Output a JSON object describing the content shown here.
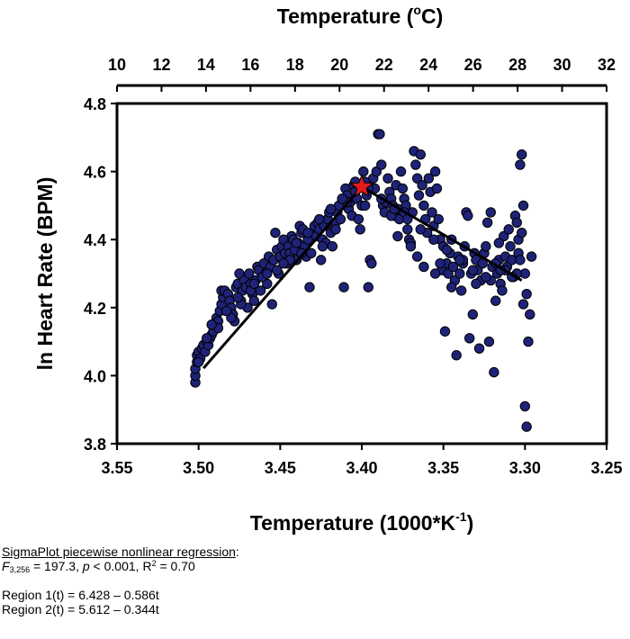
{
  "chart_data": {
    "type": "scatter",
    "title": "",
    "xlabel": "Temperature (1000*K",
    "xlabel_sup": "-1",
    "xlabel_end": ")",
    "ylabel": "ln Heart Rate (BPM)",
    "top_axis_title": "Temperature (",
    "top_axis_title_sup": "o",
    "top_axis_title_end": "C)",
    "xlim": [
      3.55,
      3.25
    ],
    "ylim": [
      3.8,
      4.8
    ],
    "x_ticks": [
      "3.55",
      "3.50",
      "3.45",
      "3.40",
      "3.35",
      "3.30",
      "3.25"
    ],
    "y_ticks": [
      "3.8",
      "4.0",
      "4.2",
      "4.4",
      "4.6",
      "4.8"
    ],
    "top_axis_ticks": [
      "10",
      "12",
      "14",
      "16",
      "18",
      "20",
      "22",
      "24",
      "26",
      "28",
      "30",
      "32"
    ],
    "grid": false,
    "marker_color": "#1f2378",
    "points": [
      [
        3.502,
        3.98
      ],
      [
        3.502,
        4.0
      ],
      [
        3.502,
        4.02
      ],
      [
        3.501,
        4.04
      ],
      [
        3.501,
        4.06
      ],
      [
        3.5,
        4.07
      ],
      [
        3.499,
        4.05
      ],
      [
        3.498,
        4.08
      ],
      [
        3.497,
        4.09
      ],
      [
        3.496,
        4.07
      ],
      [
        3.495,
        4.1
      ],
      [
        3.494,
        4.09
      ],
      [
        3.493,
        4.11
      ],
      [
        3.492,
        4.12
      ],
      [
        3.491,
        4.13
      ],
      [
        3.49,
        4.15
      ],
      [
        3.489,
        4.17
      ],
      [
        3.488,
        4.16
      ],
      [
        3.487,
        4.19
      ],
      [
        3.486,
        4.21
      ],
      [
        3.485,
        4.23
      ],
      [
        3.486,
        4.25
      ],
      [
        3.484,
        4.25
      ],
      [
        3.482,
        4.24
      ],
      [
        3.481,
        4.22
      ],
      [
        3.48,
        4.2
      ],
      [
        3.479,
        4.18
      ],
      [
        3.478,
        4.16
      ],
      [
        3.477,
        4.26
      ],
      [
        3.476,
        4.27
      ],
      [
        3.475,
        4.3
      ],
      [
        3.474,
        4.22
      ],
      [
        3.473,
        4.25
      ],
      [
        3.472,
        4.28
      ],
      [
        3.471,
        4.26
      ],
      [
        3.47,
        4.2
      ],
      [
        3.469,
        4.3
      ],
      [
        3.468,
        4.27
      ],
      [
        3.467,
        4.24
      ],
      [
        3.466,
        4.22
      ],
      [
        3.465,
        4.28
      ],
      [
        3.464,
        4.32
      ],
      [
        3.463,
        4.31
      ],
      [
        3.462,
        4.25
      ],
      [
        3.461,
        4.29
      ],
      [
        3.46,
        4.33
      ],
      [
        3.459,
        4.3
      ],
      [
        3.458,
        4.27
      ],
      [
        3.457,
        4.35
      ],
      [
        3.456,
        4.32
      ],
      [
        3.455,
        4.21
      ],
      [
        3.454,
        4.34
      ],
      [
        3.453,
        4.42
      ],
      [
        3.452,
        4.37
      ],
      [
        3.451,
        4.3
      ],
      [
        3.45,
        4.35
      ],
      [
        3.449,
        4.38
      ],
      [
        3.448,
        4.4
      ],
      [
        3.447,
        4.36
      ],
      [
        3.446,
        4.33
      ],
      [
        3.445,
        4.38
      ],
      [
        3.444,
        4.36
      ],
      [
        3.443,
        4.41
      ],
      [
        3.442,
        4.4
      ],
      [
        3.441,
        4.37
      ],
      [
        3.44,
        4.34
      ],
      [
        3.439,
        4.39
      ],
      [
        3.438,
        4.44
      ],
      [
        3.437,
        4.42
      ],
      [
        3.436,
        4.43
      ],
      [
        3.435,
        4.38
      ],
      [
        3.434,
        4.35
      ],
      [
        3.433,
        4.4
      ],
      [
        3.432,
        4.26
      ],
      [
        3.431,
        4.36
      ],
      [
        3.43,
        4.42
      ],
      [
        3.429,
        4.44
      ],
      [
        3.428,
        4.41
      ],
      [
        3.427,
        4.45
      ],
      [
        3.426,
        4.43
      ],
      [
        3.425,
        4.34
      ],
      [
        3.424,
        4.4
      ],
      [
        3.423,
        4.44
      ],
      [
        3.422,
        4.39
      ],
      [
        3.421,
        4.46
      ],
      [
        3.42,
        4.48
      ],
      [
        3.419,
        4.42
      ],
      [
        3.418,
        4.38
      ],
      [
        3.417,
        4.44
      ],
      [
        3.416,
        4.45
      ],
      [
        3.415,
        4.48
      ],
      [
        3.414,
        4.5
      ],
      [
        3.413,
        4.46
      ],
      [
        3.412,
        4.52
      ],
      [
        3.411,
        4.26
      ],
      [
        3.41,
        4.55
      ],
      [
        3.409,
        4.53
      ],
      [
        3.408,
        4.49
      ],
      [
        3.407,
        4.51
      ],
      [
        3.406,
        4.47
      ],
      [
        3.405,
        4.56
      ],
      [
        3.404,
        4.54
      ],
      [
        3.403,
        4.52
      ],
      [
        3.402,
        4.46
      ],
      [
        3.401,
        4.43
      ],
      [
        3.4,
        4.5
      ],
      [
        3.399,
        4.6
      ],
      [
        3.398,
        4.57
      ],
      [
        3.397,
        4.53
      ],
      [
        3.396,
        4.26
      ],
      [
        3.395,
        4.34
      ],
      [
        3.394,
        4.33
      ],
      [
        3.393,
        4.58
      ],
      [
        3.392,
        4.55
      ],
      [
        3.391,
        4.6
      ],
      [
        3.39,
        4.71
      ],
      [
        3.389,
        4.71
      ],
      [
        3.388,
        4.62
      ],
      [
        3.387,
        4.5
      ],
      [
        3.386,
        4.48
      ],
      [
        3.385,
        4.51
      ],
      [
        3.384,
        4.58
      ],
      [
        3.383,
        4.54
      ],
      [
        3.382,
        4.52
      ],
      [
        3.381,
        4.5
      ],
      [
        3.38,
        4.47
      ],
      [
        3.379,
        4.56
      ],
      [
        3.378,
        4.49
      ],
      [
        3.377,
        4.46
      ],
      [
        3.376,
        4.6
      ],
      [
        3.375,
        4.55
      ],
      [
        3.374,
        4.52
      ],
      [
        3.373,
        4.5
      ],
      [
        3.372,
        4.43
      ],
      [
        3.371,
        4.4
      ],
      [
        3.37,
        4.39
      ],
      [
        3.369,
        4.48
      ],
      [
        3.368,
        4.66
      ],
      [
        3.367,
        4.62
      ],
      [
        3.366,
        4.58
      ],
      [
        3.365,
        4.53
      ],
      [
        3.364,
        4.65
      ],
      [
        3.363,
        4.56
      ],
      [
        3.362,
        4.5
      ],
      [
        3.361,
        4.46
      ],
      [
        3.36,
        4.42
      ],
      [
        3.359,
        4.58
      ],
      [
        3.358,
        4.54
      ],
      [
        3.357,
        4.48
      ],
      [
        3.356,
        4.44
      ],
      [
        3.355,
        4.6
      ],
      [
        3.354,
        4.55
      ],
      [
        3.353,
        4.46
      ],
      [
        3.352,
        4.4
      ],
      [
        3.351,
        4.31
      ],
      [
        3.35,
        4.38
      ],
      [
        3.349,
        4.13
      ],
      [
        3.348,
        4.33
      ],
      [
        3.347,
        4.3
      ],
      [
        3.346,
        4.36
      ],
      [
        3.345,
        4.4
      ],
      [
        3.344,
        4.32
      ],
      [
        3.343,
        4.28
      ],
      [
        3.342,
        4.06
      ],
      [
        3.341,
        4.35
      ],
      [
        3.34,
        4.3
      ],
      [
        3.339,
        4.25
      ],
      [
        3.338,
        4.33
      ],
      [
        3.337,
        4.38
      ],
      [
        3.336,
        4.48
      ],
      [
        3.335,
        4.47
      ],
      [
        3.334,
        4.11
      ],
      [
        3.333,
        4.3
      ],
      [
        3.332,
        4.18
      ],
      [
        3.331,
        4.36
      ],
      [
        3.33,
        4.34
      ],
      [
        3.329,
        4.31
      ],
      [
        3.328,
        4.08
      ],
      [
        3.327,
        4.28
      ],
      [
        3.326,
        4.33
      ],
      [
        3.325,
        4.36
      ],
      [
        3.324,
        4.38
      ],
      [
        3.323,
        4.45
      ],
      [
        3.322,
        4.1
      ],
      [
        3.321,
        4.48
      ],
      [
        3.32,
        4.32
      ],
      [
        3.319,
        4.01
      ],
      [
        3.318,
        4.22
      ],
      [
        3.317,
        4.3
      ],
      [
        3.316,
        4.34
      ],
      [
        3.315,
        4.27
      ],
      [
        3.314,
        4.25
      ],
      [
        3.313,
        4.41
      ],
      [
        3.312,
        4.35
      ],
      [
        3.311,
        4.32
      ],
      [
        3.31,
        4.43
      ],
      [
        3.309,
        4.38
      ],
      [
        3.308,
        4.34
      ],
      [
        3.307,
        4.29
      ],
      [
        3.306,
        4.47
      ],
      [
        3.305,
        4.45
      ],
      [
        3.304,
        4.4
      ],
      [
        3.303,
        4.62
      ],
      [
        3.302,
        4.65
      ],
      [
        3.301,
        4.5
      ],
      [
        3.3,
        4.3
      ],
      [
        3.299,
        4.24
      ],
      [
        3.298,
        4.1
      ],
      [
        3.297,
        4.18
      ],
      [
        3.296,
        4.35
      ],
      [
        3.305,
        4.3
      ],
      [
        3.304,
        4.36
      ],
      [
        3.302,
        4.42
      ],
      [
        3.301,
        4.21
      ],
      [
        3.3,
        3.91
      ],
      [
        3.299,
        3.85
      ],
      [
        3.312,
        4.31
      ],
      [
        3.318,
        4.33
      ],
      [
        3.316,
        4.39
      ],
      [
        3.321,
        4.28
      ],
      [
        3.33,
        4.27
      ],
      [
        3.338,
        4.34
      ],
      [
        3.345,
        4.26
      ],
      [
        3.352,
        4.33
      ],
      [
        3.366,
        4.35
      ],
      [
        3.374,
        4.48
      ],
      [
        3.382,
        4.47
      ],
      [
        3.398,
        4.5
      ],
      [
        3.409,
        4.51
      ],
      [
        3.416,
        4.43
      ],
      [
        3.424,
        4.38
      ],
      [
        3.437,
        4.36
      ],
      [
        3.444,
        4.34
      ],
      [
        3.452,
        4.31
      ],
      [
        3.461,
        4.29
      ],
      [
        3.468,
        4.25
      ],
      [
        3.474,
        4.21
      ],
      [
        3.48,
        4.17
      ],
      [
        3.488,
        4.14
      ],
      [
        3.495,
        4.11
      ],
      [
        3.5,
        4.04
      ],
      [
        3.492,
        4.15
      ],
      [
        3.483,
        4.19
      ],
      [
        3.476,
        4.23
      ],
      [
        3.466,
        4.27
      ],
      [
        3.458,
        4.3
      ],
      [
        3.448,
        4.33
      ],
      [
        3.44,
        4.39
      ],
      [
        3.433,
        4.42
      ],
      [
        3.426,
        4.46
      ],
      [
        3.419,
        4.49
      ],
      [
        3.412,
        4.52
      ],
      [
        3.404,
        4.57
      ],
      [
        3.396,
        4.55
      ],
      [
        3.388,
        4.52
      ],
      [
        3.38,
        4.49
      ],
      [
        3.372,
        4.46
      ],
      [
        3.364,
        4.43
      ],
      [
        3.356,
        4.4
      ],
      [
        3.348,
        4.37
      ],
      [
        3.34,
        4.34
      ],
      [
        3.332,
        4.31
      ],
      [
        3.324,
        4.29
      ],
      [
        3.315,
        4.31
      ],
      [
        3.308,
        4.29
      ],
      [
        3.303,
        4.34
      ],
      [
        3.355,
        4.3
      ],
      [
        3.362,
        4.32
      ],
      [
        3.37,
        4.38
      ],
      [
        3.378,
        4.41
      ]
    ],
    "fit_line": [
      [
        3.497,
        4.022
      ],
      [
        3.4,
        4.555
      ],
      [
        3.302,
        4.28
      ]
    ],
    "breakpoint": [
      3.4,
      4.555
    ],
    "breakpoint_color": "#e11b1b"
  },
  "notes": {
    "heading": "SigmaPlot piecewise nonlinear regression",
    "heading_colon": ":",
    "stat_f": "F",
    "stat_f_sub": "3,256",
    "stat_rest": " = 197.3, ",
    "stat_p": "p",
    "stat_p_rest": " < 0.001, R",
    "stat_r2_sup": "2",
    "stat_r2_rest": " = 0.70",
    "region1": "Region 1(t) = 6.428 – 0.586t",
    "region2": "Region 2(t) = 5.612 – 0.344t"
  }
}
